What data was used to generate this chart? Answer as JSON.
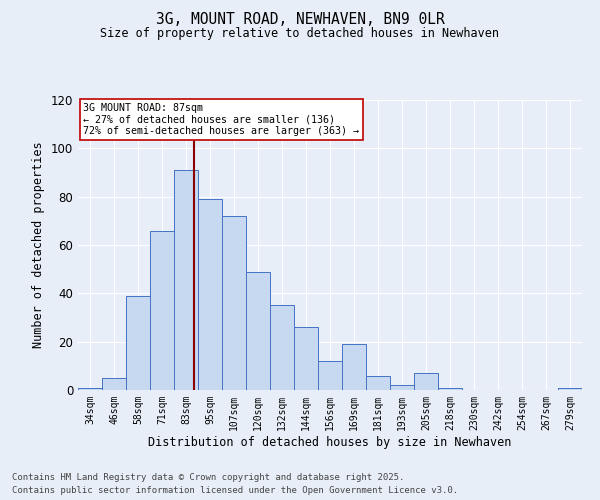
{
  "title": "3G, MOUNT ROAD, NEWHAVEN, BN9 0LR",
  "subtitle": "Size of property relative to detached houses in Newhaven",
  "xlabel": "Distribution of detached houses by size in Newhaven",
  "ylabel": "Number of detached properties",
  "bar_labels": [
    "34sqm",
    "46sqm",
    "58sqm",
    "71sqm",
    "83sqm",
    "95sqm",
    "107sqm",
    "120sqm",
    "132sqm",
    "144sqm",
    "156sqm",
    "169sqm",
    "181sqm",
    "193sqm",
    "205sqm",
    "218sqm",
    "230sqm",
    "242sqm",
    "254sqm",
    "267sqm",
    "279sqm"
  ],
  "bar_values": [
    1,
    5,
    39,
    66,
    91,
    79,
    72,
    49,
    35,
    26,
    12,
    19,
    6,
    2,
    7,
    1,
    0,
    0,
    0,
    0,
    1
  ],
  "bar_color": "#c6d9f1",
  "bar_edge_color": "#4472c4",
  "ylim": [
    0,
    120
  ],
  "yticks": [
    0,
    20,
    40,
    60,
    80,
    100,
    120
  ],
  "vline_color": "#8b0000",
  "annotation_title": "3G MOUNT ROAD: 87sqm",
  "annotation_line1": "← 27% of detached houses are smaller (136)",
  "annotation_line2": "72% of semi-detached houses are larger (363) →",
  "annotation_box_color": "#ffffff",
  "annotation_box_edge": "#c00000",
  "footnote1": "Contains HM Land Registry data © Crown copyright and database right 2025.",
  "footnote2": "Contains public sector information licensed under the Open Government Licence v3.0.",
  "background_color": "#e8eef8",
  "grid_color": "#ffffff"
}
